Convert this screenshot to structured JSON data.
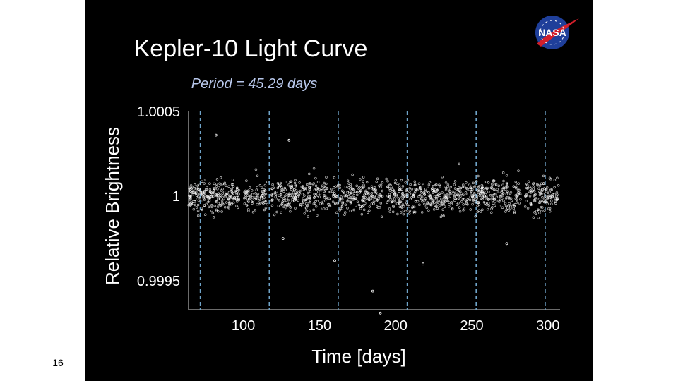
{
  "slide": {
    "page_number": "16",
    "logo_text": "NASA"
  },
  "colors": {
    "background": "#000000",
    "points": "#ffffff",
    "transit_lines": "#6fa3c8",
    "subtitle": "#b8c8ec"
  },
  "chart_data": {
    "type": "scatter",
    "title": "Kepler-10 Light Curve",
    "subtitle": "Period = 45.29 days",
    "xlabel": "Time [days]",
    "ylabel": "Relative Brightness",
    "xlim": [
      64,
      308
    ],
    "ylim": [
      0.99933,
      1.0005
    ],
    "xticks": [
      {
        "value": 100,
        "label": "100"
      },
      {
        "value": 150,
        "label": "150"
      },
      {
        "value": 200,
        "label": "200"
      },
      {
        "value": 250,
        "label": "250"
      },
      {
        "value": 300,
        "label": "300"
      }
    ],
    "yticks": [
      {
        "value": 1.0005,
        "label": "1.0005"
      },
      {
        "value": 1.0,
        "label": "1"
      },
      {
        "value": 0.9995,
        "label": "0.9995"
      }
    ],
    "grid": false,
    "transit_times": [
      71.7,
      117.0,
      162.3,
      207.6,
      252.9,
      298.2
    ],
    "data_gaps": [
      [
        97.5,
        100.5
      ],
      [
        116.0,
        118.5
      ],
      [
        191.5,
        193.5
      ],
      [
        282.0,
        285.0
      ]
    ],
    "observation_span": [
      64,
      307
    ],
    "baseline": 1.0,
    "scatter_std": 5e-05,
    "sparse_outliers": [
      {
        "x": 82,
        "y": 1.00036
      },
      {
        "x": 130,
        "y": 1.00033
      },
      {
        "x": 160,
        "y": 0.99962
      },
      {
        "x": 126,
        "y": 0.99975
      },
      {
        "x": 185,
        "y": 0.99944
      },
      {
        "x": 190,
        "y": 0.99931
      },
      {
        "x": 218,
        "y": 0.9996
      },
      {
        "x": 273,
        "y": 0.99972
      }
    ]
  }
}
